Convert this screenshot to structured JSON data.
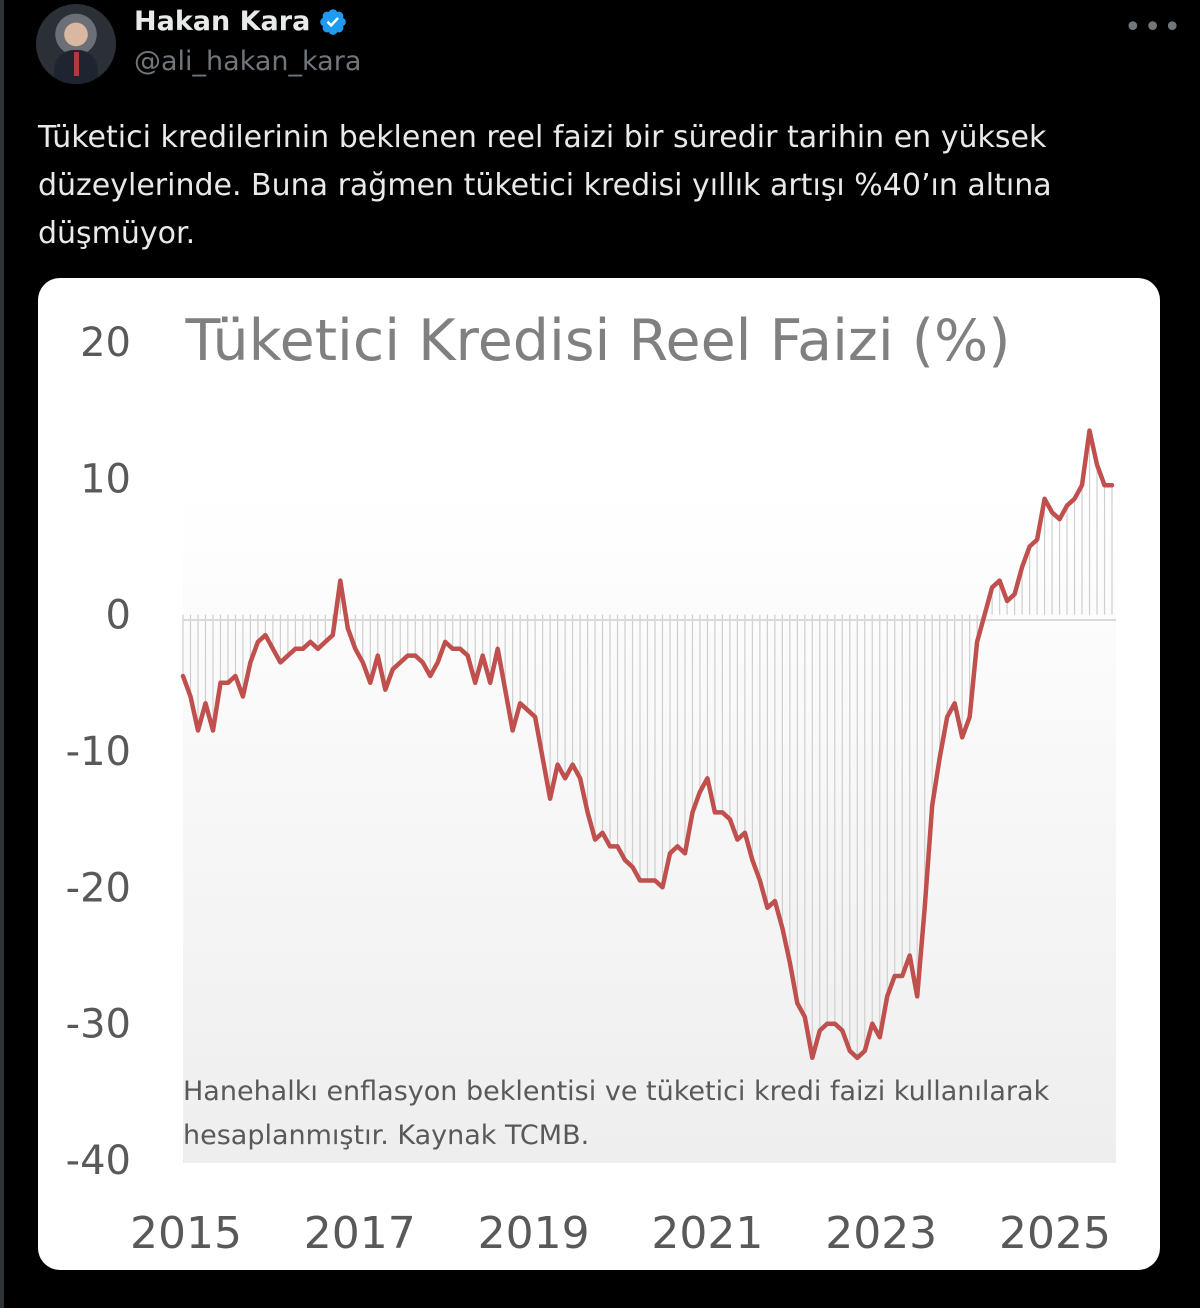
{
  "tweet": {
    "author_name": "Hakan Kara",
    "author_handle": "@ali_hakan_kara",
    "text": "Tüketici kredilerinin beklenen reel faizi bir süredir tarihin en yüksek düzeylerinde. Buna rağmen tüketici kredisi yıllık artışı %40’ın altına düşmüyor.",
    "more_icon": "more-horizontal-icon",
    "verified_icon": "verified-badge-icon",
    "verified_color": "#1d9bf0"
  },
  "chart_data": {
    "type": "line",
    "title": "Tüketici Kredisi Reel Faizi (%)",
    "note": "Hanehalkı enflasyon  beklentisi ve tüketici kredi faizi kullanılarak hesaplanmıştır. Kaynak TCMB.",
    "x_tick_labels": [
      "2015",
      "2017",
      "2019",
      "2021",
      "2023",
      "2025"
    ],
    "y_tick_labels": [
      "20",
      "10",
      "0",
      "-10",
      "-20",
      "-30",
      "-40"
    ],
    "ylim": [
      -40,
      20
    ],
    "xlim": [
      "2015-01",
      "2025-11"
    ],
    "line_color": "#c0504d",
    "series": [
      {
        "x_start": "2015-01",
        "x_step": "1 month",
        "values": [
          -4.5,
          -6,
          -8.5,
          -6.5,
          -8.5,
          -5,
          -5,
          -4.5,
          -6,
          -3.5,
          -2,
          -1.5,
          -2.5,
          -3.5,
          -3,
          -2.5,
          -2.5,
          -2,
          -2.5,
          -2,
          -1.5,
          2.5,
          -1,
          -2.5,
          -3.5,
          -5,
          -3,
          -5.5,
          -4,
          -3.5,
          -3,
          -3,
          -3.5,
          -4.5,
          -3.5,
          -2,
          -2.5,
          -2.5,
          -3,
          -5,
          -3,
          -5,
          -2.5,
          -5.5,
          -8.5,
          -6.5,
          -7,
          -7.5,
          -10.5,
          -13.5,
          -11,
          -12,
          -11,
          -12,
          -14.5,
          -16.5,
          -16,
          -17,
          -17,
          -18,
          -18.5,
          -19.5,
          -19.5,
          -19.5,
          -20,
          -17.5,
          -17,
          -17.5,
          -14.5,
          -13,
          -12,
          -14.5,
          -14.5,
          -15,
          -16.5,
          -16,
          -18,
          -19.5,
          -21.5,
          -21,
          -23,
          -25.5,
          -28.5,
          -29.5,
          -32.5,
          -30.5,
          -30,
          -30,
          -30.5,
          -32,
          -32.5,
          -32,
          -30,
          -31,
          -28,
          -26.5,
          -26.5,
          -25,
          -28,
          -21.5,
          -14,
          -10.5,
          -7.5,
          -6.5,
          -9,
          -7.5,
          -2,
          0,
          2,
          2.5,
          1,
          1.5,
          3.5,
          5,
          5.5,
          8.5,
          7.5,
          7,
          8,
          8.5,
          9.5,
          13.5,
          11,
          9.5,
          9.5
        ]
      }
    ]
  }
}
